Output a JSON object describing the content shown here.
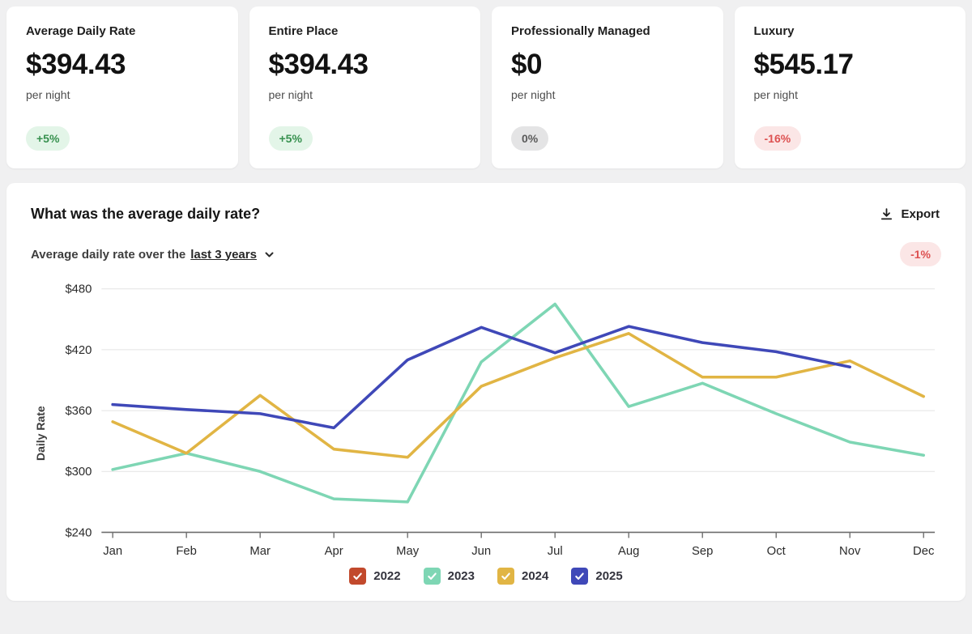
{
  "stat_cards": [
    {
      "title": "Average Daily Rate",
      "value": "$394.43",
      "unit": "per night",
      "badge": "+5%",
      "badge_type": "positive"
    },
    {
      "title": "Entire Place",
      "value": "$394.43",
      "unit": "per night",
      "badge": "+5%",
      "badge_type": "positive"
    },
    {
      "title": "Professionally Managed",
      "value": "$0",
      "unit": "per night",
      "badge": "0%",
      "badge_type": "neutral"
    },
    {
      "title": "Luxury",
      "value": "$545.17",
      "unit": "per night",
      "badge": "-16%",
      "badge_type": "negative"
    }
  ],
  "chart_card": {
    "title": "What was the average daily rate?",
    "export_label": "Export",
    "subtitle_prefix": "Average daily rate over the",
    "subtitle_link": "last 3 years",
    "change_badge": "-1%",
    "ylabel": "Daily Rate"
  },
  "chart_data": {
    "type": "line",
    "x": [
      "Jan",
      "Feb",
      "Mar",
      "Apr",
      "May",
      "Jun",
      "Jul",
      "Aug",
      "Sep",
      "Oct",
      "Nov",
      "Dec"
    ],
    "ylim": [
      240,
      480
    ],
    "yticks": [
      240,
      300,
      360,
      420,
      480
    ],
    "ytick_labels": [
      "$240",
      "$300",
      "$360",
      "$420",
      "$480"
    ],
    "ylabel": "Daily Rate",
    "grid": true,
    "legend_position": "bottom",
    "series": [
      {
        "name": "2022",
        "color": "#c2492c",
        "values": []
      },
      {
        "name": "2023",
        "color": "#7ed6b4",
        "values": [
          302,
          318,
          300,
          273,
          270,
          408,
          465,
          364,
          387,
          357,
          329,
          316
        ]
      },
      {
        "name": "2024",
        "color": "#e1b544",
        "values": [
          349,
          318,
          375,
          322,
          314,
          384,
          412,
          436,
          393,
          393,
          409,
          374
        ]
      },
      {
        "name": "2025",
        "color": "#3f48b8",
        "values": [
          366,
          361,
          357,
          343,
          410,
          442,
          417,
          443,
          427,
          418,
          403,
          null
        ]
      }
    ]
  }
}
